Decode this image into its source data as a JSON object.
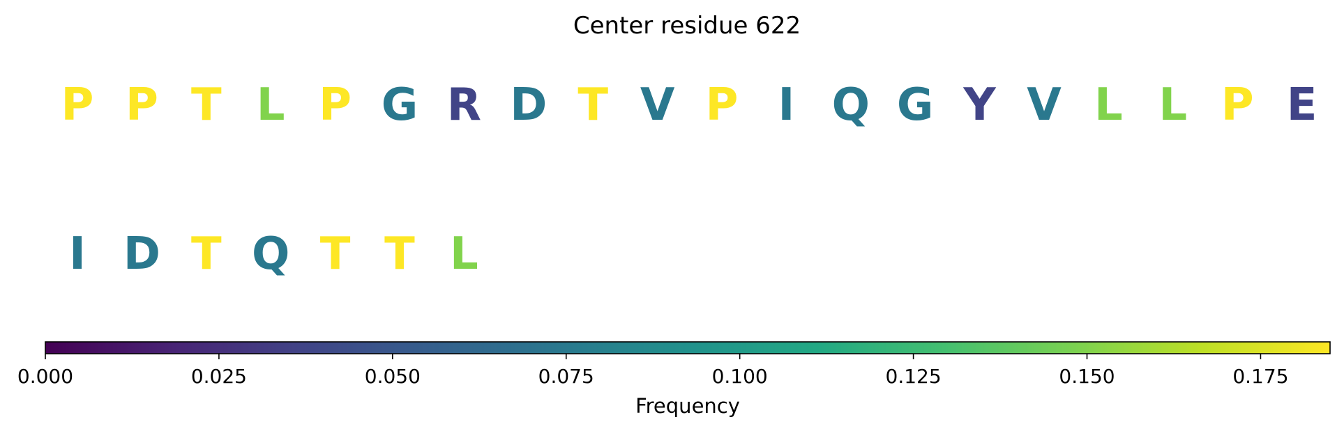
{
  "chart_data": {
    "type": "heatmap",
    "title": "Center residue 622",
    "residues": [
      {
        "letter": "P",
        "frequency": 0.185
      },
      {
        "letter": "P",
        "frequency": 0.185
      },
      {
        "letter": "T",
        "frequency": 0.185
      },
      {
        "letter": "L",
        "frequency": 0.15
      },
      {
        "letter": "P",
        "frequency": 0.185
      },
      {
        "letter": "G",
        "frequency": 0.074
      },
      {
        "letter": "R",
        "frequency": 0.037
      },
      {
        "letter": "D",
        "frequency": 0.074
      },
      {
        "letter": "T",
        "frequency": 0.185
      },
      {
        "letter": "V",
        "frequency": 0.074
      },
      {
        "letter": "P",
        "frequency": 0.185
      },
      {
        "letter": "I",
        "frequency": 0.074
      },
      {
        "letter": "Q",
        "frequency": 0.074
      },
      {
        "letter": "G",
        "frequency": 0.074
      },
      {
        "letter": "Y",
        "frequency": 0.037
      },
      {
        "letter": "V",
        "frequency": 0.074
      },
      {
        "letter": "L",
        "frequency": 0.15
      },
      {
        "letter": "L",
        "frequency": 0.15
      },
      {
        "letter": "P",
        "frequency": 0.185
      },
      {
        "letter": "E",
        "frequency": 0.037
      },
      {
        "letter": "I",
        "frequency": 0.074
      },
      {
        "letter": "D",
        "frequency": 0.074
      },
      {
        "letter": "T",
        "frequency": 0.185
      },
      {
        "letter": "Q",
        "frequency": 0.074
      },
      {
        "letter": "T",
        "frequency": 0.185
      },
      {
        "letter": "T",
        "frequency": 0.185
      },
      {
        "letter": "L",
        "frequency": 0.15
      }
    ],
    "colorbar": {
      "label": "Frequency",
      "colormap": "viridis",
      "range": [
        0,
        0.185
      ],
      "ticks": [
        0.0,
        0.025,
        0.05,
        0.075,
        0.1,
        0.125,
        0.15,
        0.175
      ],
      "tick_labels": [
        "0.000",
        "0.025",
        "0.050",
        "0.075",
        "0.100",
        "0.125",
        "0.150",
        "0.175"
      ]
    }
  }
}
